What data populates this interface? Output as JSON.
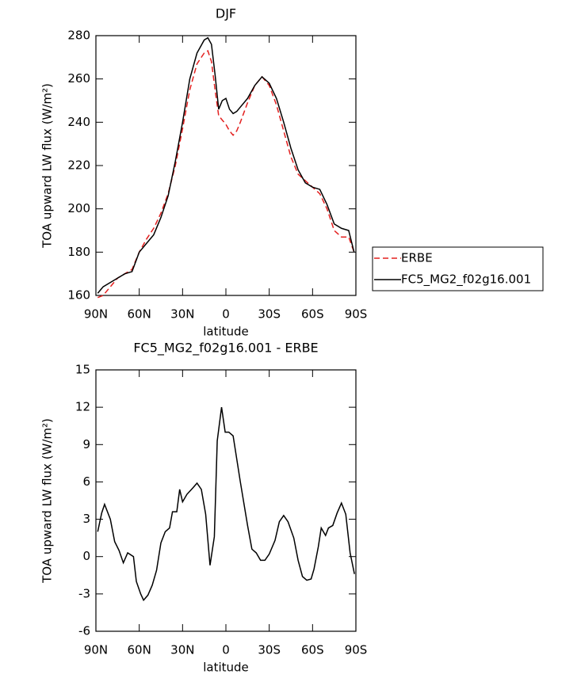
{
  "chart_data": [
    {
      "type": "line",
      "title": "DJF",
      "x_label": "latitude",
      "y_label": "TOA upward LW flux (W/m²)",
      "x": [
        88.75,
        85,
        80,
        75,
        70,
        65,
        60,
        55,
        50,
        45,
        40,
        35,
        30,
        25,
        20,
        15,
        12.5,
        10,
        7.5,
        5,
        2.5,
        0,
        -2.5,
        -5,
        -7.5,
        -10,
        -15,
        -20,
        -25,
        -30,
        -35,
        -40,
        -45,
        -50,
        -55,
        -60,
        -65,
        -70,
        -75,
        -80,
        -85,
        -88.75
      ],
      "series": [
        {
          "name": "ERBE",
          "color": "#e3201f",
          "linestyle": "dashed",
          "values": [
            159,
            160,
            164,
            168,
            170,
            172,
            180,
            186,
            191,
            198,
            207,
            220,
            237,
            255,
            267,
            272,
            273,
            268,
            255,
            243,
            241,
            239,
            236,
            234,
            236,
            240,
            249,
            257,
            261,
            257,
            248,
            236,
            224,
            216,
            213,
            210,
            207,
            200,
            190,
            187,
            187,
            180
          ]
        },
        {
          "name": "FC5_MG2_f02g16.001",
          "color": "#000000",
          "linestyle": "solid",
          "values": [
            161,
            164,
            166,
            168,
            170,
            171,
            180,
            184,
            188,
            196,
            206,
            222,
            240,
            260,
            272,
            278,
            279,
            276,
            262,
            246,
            250,
            251,
            246,
            244,
            245,
            247,
            251,
            257,
            261,
            258,
            251,
            240,
            228,
            218,
            212,
            210,
            209,
            202,
            193,
            191,
            190,
            180
          ]
        }
      ],
      "xlim": [
        90,
        -90
      ],
      "xticks": [
        {
          "value": 90,
          "label": "90N"
        },
        {
          "value": 60,
          "label": "60N"
        },
        {
          "value": 30,
          "label": "30N"
        },
        0,
        {
          "value": -30,
          "label": "30S"
        },
        {
          "value": -60,
          "label": "60S"
        },
        {
          "value": -90,
          "label": "90S"
        }
      ],
      "ylim": [
        160,
        280
      ],
      "yticks": [
        160,
        180,
        200,
        220,
        240,
        260,
        280
      ],
      "legend": "right"
    },
    {
      "type": "line",
      "title": "FC5_MG2_f02g16.001 - ERBE",
      "x_label": "latitude",
      "y_label": "TOA upward LW flux (W/m²)",
      "x": [
        88.75,
        86,
        84,
        80,
        77,
        74,
        71,
        68,
        64,
        62,
        59,
        57,
        54,
        51,
        48,
        45,
        42,
        39,
        37,
        34,
        32,
        30,
        27,
        23,
        20,
        17,
        14,
        11,
        8,
        6,
        3,
        0.5,
        -2,
        -5,
        -10,
        -15,
        -18,
        -21,
        -24,
        -27,
        -30,
        -34,
        -37,
        -40,
        -43,
        -47,
        -50,
        -53,
        -56,
        -59,
        -61,
        -64,
        -66,
        -69,
        -71,
        -74,
        -77,
        -80,
        -83,
        -86,
        -89
      ],
      "values": [
        2,
        3.5,
        4.2,
        3,
        1.2,
        0.5,
        -0.5,
        0.3,
        0,
        -2,
        -3,
        -3.5,
        -3.1,
        -2.3,
        -1.1,
        1.1,
        2,
        2.3,
        3.6,
        3.6,
        5.4,
        4.4,
        5,
        5.5,
        5.9,
        5.4,
        3.4,
        -0.7,
        1.6,
        9.3,
        12,
        10,
        10,
        9.7,
        6,
        2.5,
        0.6,
        0.3,
        -0.3,
        -0.3,
        0.2,
        1.3,
        2.8,
        3.3,
        2.8,
        1.5,
        -0.3,
        -1.6,
        -1.9,
        -1.8,
        -1,
        0.8,
        2.3,
        1.7,
        2.3,
        2.5,
        3.5,
        4.3,
        3.4,
        0.3,
        -1.4
      ],
      "color": "#000000",
      "xlim": [
        90,
        -90
      ],
      "xticks": [
        {
          "value": 90,
          "label": "90N"
        },
        {
          "value": 60,
          "label": "60N"
        },
        {
          "value": 30,
          "label": "30N"
        },
        0,
        {
          "value": -30,
          "label": "30S"
        },
        {
          "value": -60,
          "label": "60S"
        },
        {
          "value": -90,
          "label": "90S"
        }
      ],
      "ylim": [
        -6,
        15
      ],
      "yticks": [
        -6,
        -3,
        0,
        3,
        6,
        9,
        12,
        15
      ]
    }
  ]
}
